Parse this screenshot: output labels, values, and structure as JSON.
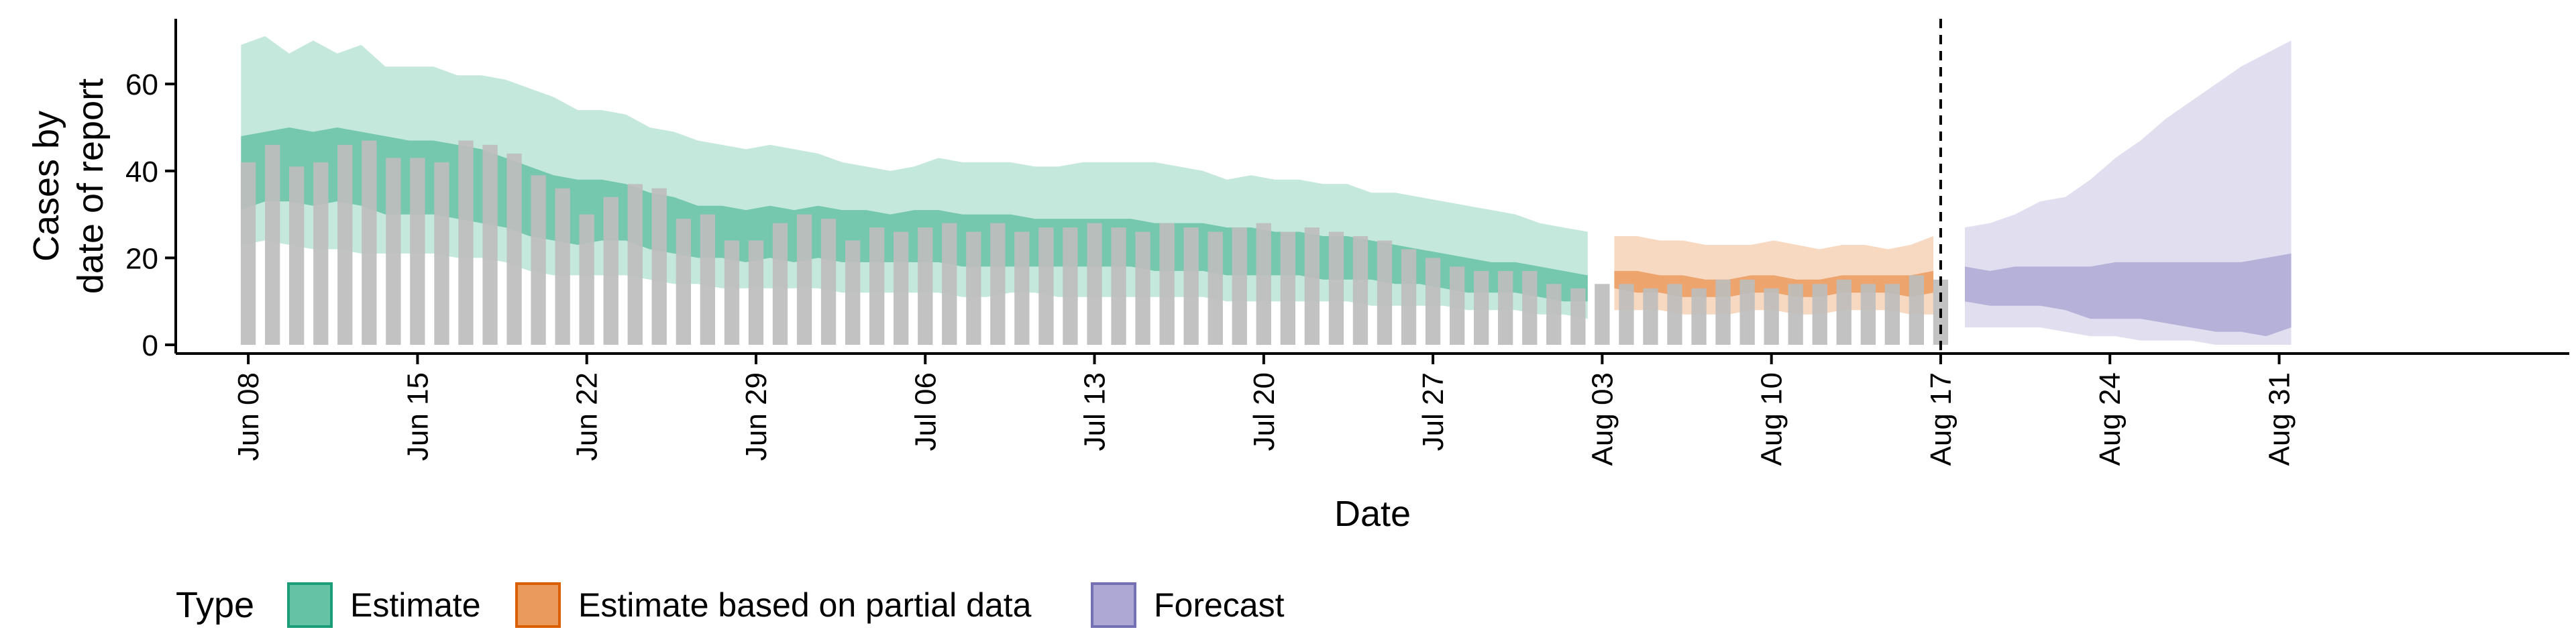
{
  "chart_data": {
    "type": "area",
    "xlabel": "Date",
    "ylabel": [
      "Cases by",
      "date of report"
    ],
    "ylim": [
      -2,
      75
    ],
    "y_ticks": [
      0,
      20,
      40,
      60
    ],
    "x_start": "2020-06-08",
    "x_range": [
      -3,
      96
    ],
    "x_ticks": [
      {
        "day": 0,
        "label": "Jun 08"
      },
      {
        "day": 7,
        "label": "Jun 15"
      },
      {
        "day": 14,
        "label": "Jun 22"
      },
      {
        "day": 21,
        "label": "Jun 29"
      },
      {
        "day": 28,
        "label": "Jul 06"
      },
      {
        "day": 35,
        "label": "Jul 13"
      },
      {
        "day": 42,
        "label": "Jul 20"
      },
      {
        "day": 49,
        "label": "Jul 27"
      },
      {
        "day": 56,
        "label": "Aug 03"
      },
      {
        "day": 63,
        "label": "Aug 10"
      },
      {
        "day": 70,
        "label": "Aug 17"
      },
      {
        "day": 77,
        "label": "Aug 24"
      },
      {
        "day": 84,
        "label": "Aug 31"
      }
    ],
    "forecast_cutoff_day": 70.0,
    "legend": {
      "title": "Type",
      "position": "bottom-left",
      "items": [
        {
          "label": "Estimate",
          "fill": "#66c2a5",
          "stroke": "#1b9e77"
        },
        {
          "label": "Estimate based on partial data",
          "fill": "#eb9a5e",
          "stroke": "#d95f02"
        },
        {
          "label": "Forecast",
          "fill": "#ada9d4",
          "stroke": "#7570b3"
        }
      ]
    },
    "bars": {
      "color": "#bdbdbd",
      "values": [
        42,
        46,
        41,
        42,
        46,
        47,
        43,
        43,
        42,
        47,
        46,
        44,
        39,
        36,
        30,
        34,
        37,
        36,
        29,
        30,
        24,
        24,
        28,
        30,
        29,
        24,
        27,
        26,
        27,
        28,
        26,
        28,
        26,
        27,
        27,
        28,
        27,
        26,
        28,
        27,
        26,
        27,
        28,
        26,
        27,
        26,
        25,
        24,
        22,
        20,
        18,
        17,
        17,
        17,
        14,
        13,
        14,
        14,
        13,
        14,
        13,
        15,
        15,
        13,
        14,
        14,
        15,
        14,
        14,
        16,
        15
      ]
    },
    "series": [
      {
        "name": "Estimate",
        "fill": "#66c2a5",
        "x_first_day": -0.3,
        "x_last_day": 55.4,
        "outer_upper": [
          69,
          71,
          67,
          70,
          67,
          69,
          64,
          64,
          64,
          62,
          62,
          61,
          59,
          57,
          54,
          54,
          53,
          50,
          49,
          47,
          46,
          45,
          46,
          45,
          44,
          42,
          41,
          40,
          41,
          43,
          42,
          42,
          42,
          41,
          41,
          42,
          42,
          42,
          42,
          41,
          40,
          38,
          39,
          38,
          38,
          37,
          37,
          35,
          35,
          34,
          33,
          32,
          31,
          30,
          28,
          27,
          26
        ],
        "inner_upper": [
          48,
          49,
          50,
          49,
          50,
          49,
          48,
          47,
          47,
          46,
          45,
          43,
          41,
          39,
          38,
          38,
          37,
          35,
          34,
          32,
          32,
          31,
          32,
          31,
          32,
          31,
          31,
          30,
          31,
          31,
          30,
          30,
          30,
          29,
          29,
          29,
          29,
          29,
          28,
          28,
          28,
          27,
          27,
          26,
          26,
          25,
          25,
          24,
          23,
          22,
          21,
          20,
          19,
          19,
          18,
          17,
          16
        ],
        "inner_lower": [
          31,
          33,
          33,
          32,
          33,
          32,
          30,
          30,
          30,
          29,
          28,
          27,
          25,
          24,
          23,
          24,
          24,
          22,
          21,
          20,
          20,
          19,
          20,
          19,
          20,
          19,
          19,
          19,
          19,
          19,
          18,
          18,
          18,
          18,
          18,
          18,
          18,
          18,
          17,
          17,
          17,
          16,
          16,
          16,
          16,
          15,
          15,
          15,
          14,
          14,
          13,
          12,
          12,
          12,
          11,
          10,
          10
        ],
        "outer_lower": [
          23,
          24,
          23,
          22,
          22,
          21,
          21,
          21,
          21,
          20,
          20,
          19,
          17,
          16,
          16,
          16,
          16,
          15,
          14,
          14,
          13,
          13,
          13,
          13,
          13,
          12,
          12,
          12,
          12,
          12,
          11,
          11,
          12,
          12,
          11,
          11,
          11,
          11,
          11,
          11,
          11,
          10,
          10,
          10,
          10,
          10,
          10,
          9,
          9,
          9,
          9,
          8,
          8,
          8,
          7,
          7,
          6
        ]
      },
      {
        "name": "Estimate based on partial data",
        "fill": "#eb9a5e",
        "x_first_day": 56.5,
        "x_last_day": 69.7,
        "outer_upper": [
          25,
          25,
          24,
          24,
          23,
          23,
          23,
          24,
          23,
          22,
          23,
          23,
          22,
          23,
          25
        ],
        "inner_upper": [
          17,
          17,
          16,
          16,
          15,
          15,
          16,
          16,
          15,
          15,
          16,
          16,
          16,
          16,
          17
        ],
        "inner_lower": [
          13,
          12,
          12,
          11,
          11,
          11,
          12,
          12,
          11,
          11,
          12,
          12,
          12,
          11,
          12
        ],
        "outer_lower": [
          8,
          8,
          8,
          7,
          7,
          7,
          8,
          8,
          7,
          7,
          8,
          8,
          8,
          7,
          7
        ]
      },
      {
        "name": "Forecast",
        "fill": "#ada9d4",
        "x_first_day": 71.0,
        "x_last_day": 84.5,
        "outer_upper": [
          27,
          28,
          30,
          33,
          34,
          38,
          43,
          47,
          52,
          56,
          60,
          64,
          67,
          70
        ],
        "inner_upper": [
          18,
          17,
          18,
          18,
          18,
          18,
          19,
          19,
          19,
          19,
          19,
          19,
          20,
          21
        ],
        "inner_lower": [
          10,
          9,
          9,
          9,
          8,
          6,
          6,
          6,
          5,
          4,
          3,
          3,
          2,
          4
        ],
        "outer_lower": [
          4,
          4,
          4,
          4,
          3,
          2,
          2,
          1,
          1,
          1,
          0,
          0,
          0,
          0
        ]
      }
    ]
  }
}
